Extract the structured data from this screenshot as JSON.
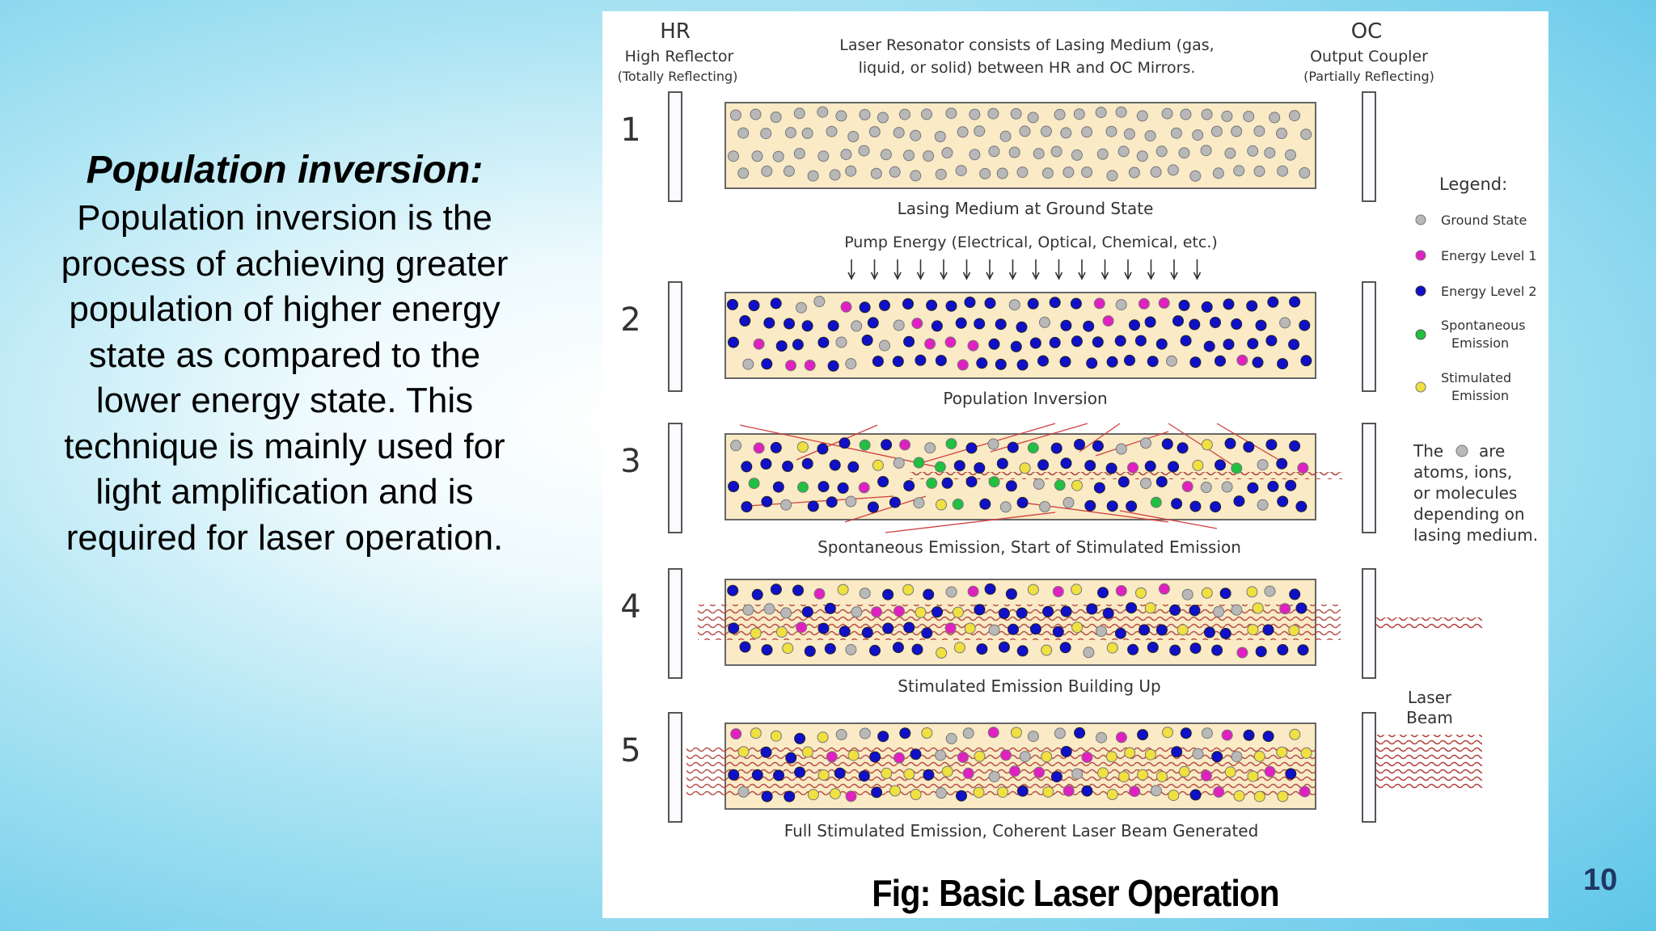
{
  "slide": {
    "heading": "Population inversion:",
    "body": "Population inversion is the process of achieving greater population of higher energy state as compared to the lower energy state. This technique is mainly used for light amplification and is required for laser operation.",
    "caption": "Fig: Basic Laser Operation",
    "page_number": "10"
  },
  "diagram": {
    "hr_label": "HR",
    "hr_name": "High Reflector",
    "hr_desc": "(Totally Reflecting)",
    "resonator_line1": "Laser Resonator consists of Lasing Medium (gas,",
    "resonator_line2": "liquid, or solid) between HR and OC Mirrors.",
    "oc_label": "OC",
    "oc_name": "Output Coupler",
    "oc_desc": "(Partially Reflecting)",
    "pump_label": "Pump Energy (Electrical, Optical, Chemical, etc.)",
    "laser_beam_line1": "Laser",
    "laser_beam_line2": "Beam",
    "stages": [
      {
        "number": "1",
        "caption": "Lasing Medium at Ground State"
      },
      {
        "number": "2",
        "caption": "Population Inversion"
      },
      {
        "number": "3",
        "caption": "Spontaneous Emission, Start of Stimulated Emission"
      },
      {
        "number": "4",
        "caption": "Stimulated Emission Building Up"
      },
      {
        "number": "5",
        "caption": "Full Stimulated Emission, Coherent Laser Beam Generated"
      }
    ],
    "legend": {
      "title": "Legend:",
      "items": [
        {
          "label": "Ground State",
          "color": "#b8b8b8"
        },
        {
          "label": "Energy Level 1",
          "color": "#e020c0"
        },
        {
          "label": "Energy Level 2",
          "color": "#1010c8"
        },
        {
          "label_line1": "Spontaneous",
          "label_line2": "Emission",
          "color": "#20c040"
        },
        {
          "label_line1": "Stimulated",
          "label_line2": "Emission",
          "color": "#f0e040"
        }
      ]
    },
    "note": {
      "line1_a": "The",
      "line1_b": "are",
      "line2": "atoms, ions,",
      "line3": "or molecules",
      "line4": "depending on",
      "line5": "lasing medium."
    }
  }
}
